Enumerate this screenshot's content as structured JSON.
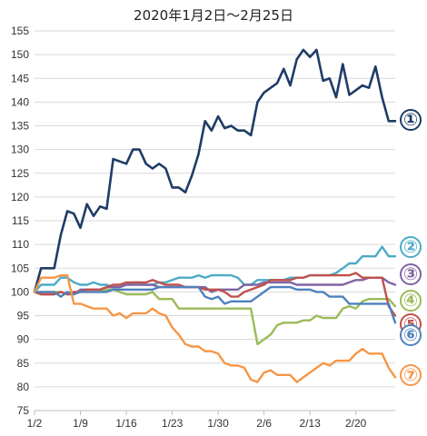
{
  "chart_data": {
    "type": "line",
    "title": "2020年1月2日～2月25日",
    "xlabel": "",
    "ylabel": "",
    "ylim": [
      75,
      155
    ],
    "yticks": [
      75,
      80,
      85,
      90,
      95,
      100,
      105,
      110,
      115,
      120,
      125,
      130,
      135,
      140,
      145,
      150,
      155
    ],
    "xticks": [
      {
        "label": "1/2",
        "day": 1
      },
      {
        "label": "1/9",
        "day": 8
      },
      {
        "label": "1/16",
        "day": 15
      },
      {
        "label": "1/23",
        "day": 22
      },
      {
        "label": "1/30",
        "day": 29
      },
      {
        "label": "2/6",
        "day": 36
      },
      {
        "label": "2/13",
        "day": 43
      },
      {
        "label": "2/20",
        "day": 50
      }
    ],
    "xlim": [
      1,
      56
    ],
    "grid": "horizontal",
    "days": [
      1,
      2,
      3,
      4,
      5,
      6,
      7,
      8,
      9,
      10,
      11,
      12,
      13,
      14,
      15,
      16,
      17,
      18,
      19,
      20,
      21,
      22,
      23,
      24,
      25,
      26,
      27,
      28,
      29,
      30,
      31,
      32,
      33,
      34,
      35,
      36,
      37,
      38,
      39,
      40,
      41,
      42,
      43,
      44,
      45,
      46,
      47,
      48,
      49,
      50,
      51,
      52,
      53,
      54,
      55,
      56
    ],
    "series": [
      {
        "name": "①",
        "color": "#1f3c66",
        "values": [
          100,
          105,
          105,
          105,
          112,
          117,
          116.5,
          113.5,
          118.5,
          116,
          118,
          117.5,
          128,
          127.5,
          127,
          130,
          130,
          127,
          126,
          127,
          126,
          122,
          122,
          121,
          124.5,
          129,
          136,
          134,
          137,
          134.5,
          135,
          134,
          134,
          133,
          140,
          142,
          143,
          144,
          147,
          143.5,
          149,
          151,
          149.5,
          151,
          144.5,
          145,
          141,
          148,
          141.5,
          142.5,
          143.5,
          143,
          147.5,
          141,
          136,
          136
        ]
      },
      {
        "name": "②",
        "color": "#4bacc6",
        "values": [
          100,
          101.5,
          101.5,
          101.5,
          103,
          103,
          102,
          101.5,
          101.5,
          102,
          101.5,
          101.5,
          101,
          101,
          101.5,
          102,
          102,
          101.5,
          101.5,
          102,
          102,
          102.5,
          103,
          103,
          103,
          103.5,
          103,
          103.5,
          103.5,
          103.5,
          103.5,
          103,
          101.5,
          101.5,
          102.5,
          102.5,
          102.5,
          102.5,
          102.5,
          103,
          103,
          103,
          103.5,
          103.5,
          103.5,
          103.5,
          104,
          105,
          106,
          106,
          107.5,
          107.5,
          107.5,
          109.5,
          107.5,
          107.5
        ]
      },
      {
        "name": "③",
        "color": "#8064a2",
        "values": [
          100,
          99.5,
          99.5,
          99.5,
          100,
          99.5,
          99.5,
          100.5,
          100.5,
          100.5,
          100.5,
          101,
          101,
          101,
          101.5,
          101.5,
          101.5,
          101.5,
          101.5,
          101,
          101,
          101,
          101,
          101,
          101,
          101,
          101,
          100,
          100.5,
          100.5,
          100.5,
          100.5,
          101.5,
          101.5,
          101.5,
          102,
          102,
          102,
          102,
          102,
          101.5,
          101.5,
          101.5,
          101.5,
          101.5,
          101.5,
          101.5,
          101.5,
          102,
          102.5,
          102.5,
          103,
          103,
          103,
          102,
          101.5
        ]
      },
      {
        "name": "④",
        "color": "#9bbb59",
        "values": [
          100,
          100,
          100,
          100,
          100,
          99.5,
          100,
          100,
          100,
          100,
          100,
          100.5,
          100.5,
          100,
          99.5,
          99.5,
          99.5,
          99.5,
          100,
          98.5,
          98.5,
          98.5,
          96.5,
          96.5,
          96.5,
          96.5,
          96.5,
          96.5,
          96.5,
          96.5,
          96.5,
          96.5,
          96.5,
          96.5,
          89,
          90,
          91,
          93,
          93.5,
          93.5,
          93.5,
          94,
          94,
          95,
          94.5,
          94.5,
          94.5,
          96.5,
          97,
          96.5,
          98,
          98.5,
          98.5,
          98.5,
          98.5,
          97
        ]
      },
      {
        "name": "⑤",
        "color": "#c0504d",
        "values": [
          100,
          99.5,
          99.5,
          99.5,
          100,
          99.5,
          100,
          100,
          100.5,
          100.5,
          100.5,
          101,
          101.5,
          101.5,
          102,
          102,
          102,
          102,
          102.5,
          102,
          101.5,
          101.5,
          101.5,
          101,
          101,
          101,
          100.5,
          100.5,
          100.5,
          100,
          99,
          99,
          100,
          100.5,
          101,
          101.5,
          102.5,
          102.5,
          102.5,
          102.5,
          103,
          103,
          103.5,
          103.5,
          103.5,
          103.5,
          103.5,
          103.5,
          103.5,
          104,
          103,
          103,
          103,
          103,
          97,
          95
        ]
      },
      {
        "name": "⑥",
        "color": "#4f81bd",
        "values": [
          100,
          100,
          100,
          100,
          99,
          100,
          99.5,
          100,
          100,
          100,
          100,
          100,
          100.5,
          100.5,
          100.5,
          100.5,
          100.5,
          100.5,
          100.5,
          101,
          101,
          101,
          101,
          101,
          101,
          101,
          99,
          98.5,
          99,
          97.5,
          98,
          98,
          98,
          98,
          99,
          100,
          101,
          101,
          101,
          101,
          100.5,
          100.5,
          100.5,
          100,
          100,
          99,
          99,
          99,
          97.5,
          97.5,
          97.5,
          97.5,
          97.5,
          97.5,
          97.5,
          93.5
        ]
      },
      {
        "name": "⑦",
        "color": "#f79646",
        "values": [
          100,
          103,
          103,
          103,
          103.5,
          103.5,
          97.5,
          97.5,
          97,
          96.5,
          96.5,
          96.5,
          95,
          95.5,
          94.5,
          95.5,
          95.5,
          95.5,
          96.5,
          95.5,
          95,
          92.5,
          91,
          89,
          88.5,
          88.5,
          87.5,
          87.5,
          87,
          85,
          84.5,
          84.5,
          84,
          81.5,
          81,
          83,
          83.5,
          82.5,
          82.5,
          82.5,
          81,
          82,
          83,
          84,
          85,
          84.5,
          85.5,
          85.5,
          85.5,
          87,
          88,
          87,
          87,
          87,
          84,
          82
        ]
      }
    ]
  }
}
